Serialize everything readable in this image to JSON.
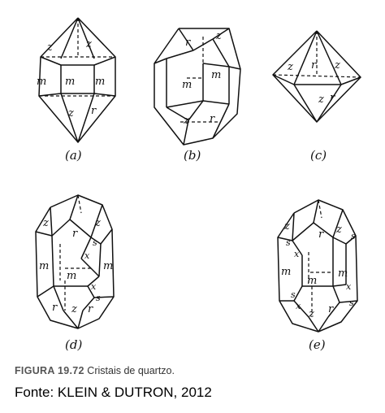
{
  "panels": [
    {
      "label": "(a)",
      "faces": [
        "z",
        "z",
        "m",
        "m",
        "m",
        "z",
        "r"
      ]
    },
    {
      "label": "(b)",
      "faces": [
        "r",
        "z",
        "m",
        "m",
        "z",
        "r"
      ]
    },
    {
      "label": "(c)",
      "faces": [
        "z",
        "r",
        "z",
        "z",
        "r"
      ]
    },
    {
      "label": "(d)",
      "faces": [
        "z",
        "z",
        "r",
        "s",
        "x",
        "m",
        "m",
        "m",
        "x",
        "s",
        "r",
        "z",
        "r"
      ]
    },
    {
      "label": "(e)",
      "faces": [
        "z",
        "r",
        "z",
        "s",
        "s",
        "x",
        "m",
        "m",
        "m",
        "x",
        "s",
        "x",
        "z",
        "r",
        "s"
      ]
    }
  ],
  "caption": {
    "figure_number": "FIGURA 19.72",
    "text": "Cristais de quartzo."
  },
  "source": "Fonte: KLEIN & DUTRON, 2012"
}
